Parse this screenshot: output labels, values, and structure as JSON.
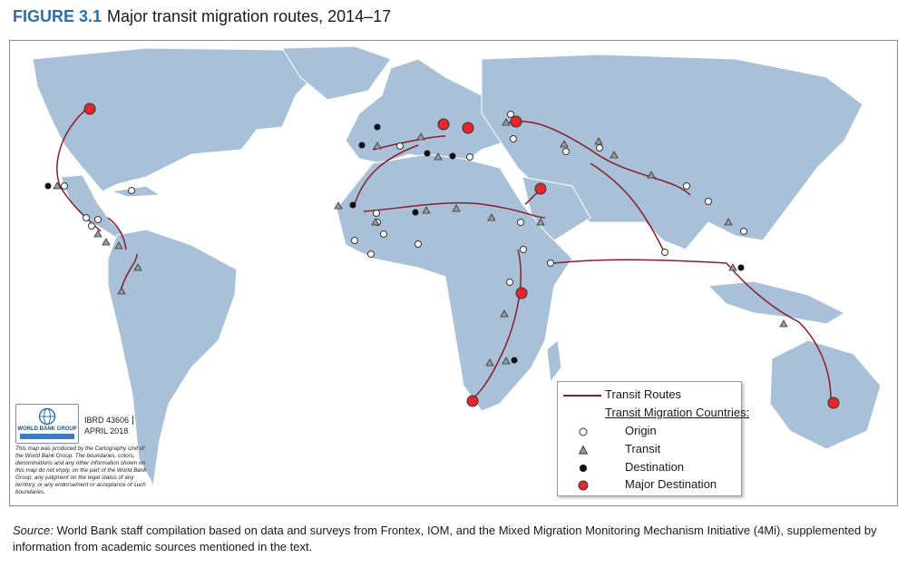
{
  "figure": {
    "label": "FIGURE 3.1",
    "title": "Major transit migration routes, 2014–17"
  },
  "credit": {
    "org_name": "WORLD BANK GROUP",
    "map_id": "IBRD 43606",
    "date": "APRIL 2018",
    "disclaimer": "This map was produced by the Cartography Unit of the World Bank Group. The boundaries, colors, denominations and any other information shown on this map do not imply, on the part of the World Bank Group, any judgment on the legal status of any territory, or any endorsement or acceptance of such boundaries."
  },
  "legend": {
    "routes_label": "Transit Routes",
    "countries_heading": "Transit Migration Countries:",
    "origin_label": "Origin",
    "transit_label": "Transit",
    "destination_label": "Destination",
    "major_destination_label": "Major Destination"
  },
  "colors": {
    "ocean": "#ffffff",
    "land": "#a8c1d9",
    "route": "#8b1c2a",
    "major_destination": "#e8242c",
    "transit": "#9a9a9a"
  },
  "source": {
    "prefix": "Source:",
    "text": "World Bank staff compilation based on data and surveys from Frontex, IOM, and the Mixed Migration Monitoring Mechanism Initiative (4Mi), supplemented by information from academic sources mentioned in the text."
  }
}
